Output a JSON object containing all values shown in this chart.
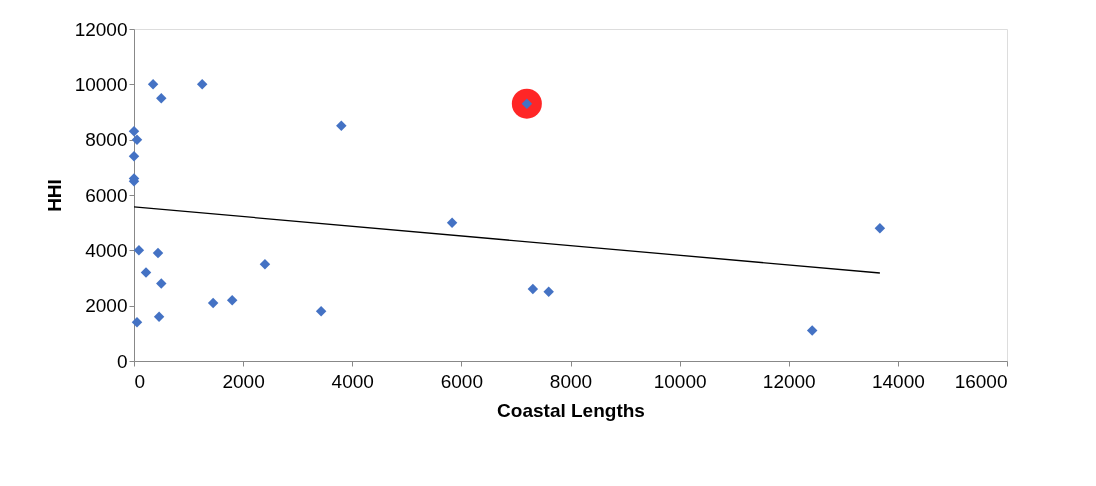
{
  "chart_data": {
    "type": "scatter",
    "xlabel": "Coastal Lengths",
    "ylabel": "HHI",
    "xlim": [
      0,
      16000
    ],
    "xticks": [
      0,
      2000,
      4000,
      6000,
      8000,
      10000,
      12000,
      14000,
      16000
    ],
    "ylim": [
      0,
      12000
    ],
    "yticks": [
      0,
      2000,
      4000,
      6000,
      8000,
      10000,
      12000
    ],
    "grid": false,
    "series": [
      {
        "type": "scatter",
        "marker": "circle",
        "color": "#ff0000",
        "x": [
          7200
        ],
        "values": [
          9300
        ]
      },
      {
        "type": "scatter",
        "marker": "diamond",
        "color": "#4472c4",
        "x": [
          350,
          1250,
          500,
          0,
          55,
          0,
          0,
          0,
          3800,
          7200,
          5830,
          13670,
          90,
          440,
          220,
          500,
          2400,
          1450,
          1800,
          3430,
          7310,
          7600,
          460,
          55,
          12430
        ],
        "values": [
          10000,
          10000,
          9500,
          8300,
          8000,
          7400,
          6600,
          6500,
          8500,
          9300,
          5000,
          4800,
          4000,
          3900,
          3200,
          2800,
          3500,
          2100,
          2200,
          1800,
          2600,
          2500,
          1600,
          1400,
          1100
        ]
      },
      {
        "type": "line",
        "marker": "none",
        "color": "#000000",
        "x": [
          0,
          13670
        ],
        "values": [
          5570,
          3180
        ]
      }
    ]
  }
}
